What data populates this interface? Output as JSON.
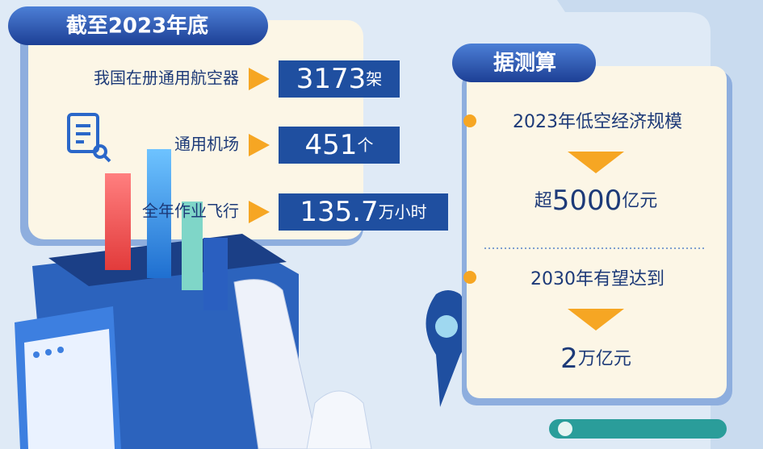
{
  "left": {
    "header": "截至2023年底",
    "items": [
      {
        "label": "我国在册通用航空器",
        "value": "3173",
        "unit": "架"
      },
      {
        "label": "通用机场",
        "value": "451",
        "unit": "个"
      },
      {
        "label": "全年作业飞行",
        "value": "135.7",
        "unit": "万小时"
      }
    ]
  },
  "right": {
    "header": "据测算",
    "items": [
      {
        "label": "2023年低空经济规模",
        "prefix": "超",
        "value": "5000",
        "unit": "亿元"
      },
      {
        "label": "2030年有望达到",
        "value": "2",
        "unit": "万亿元"
      }
    ]
  }
}
